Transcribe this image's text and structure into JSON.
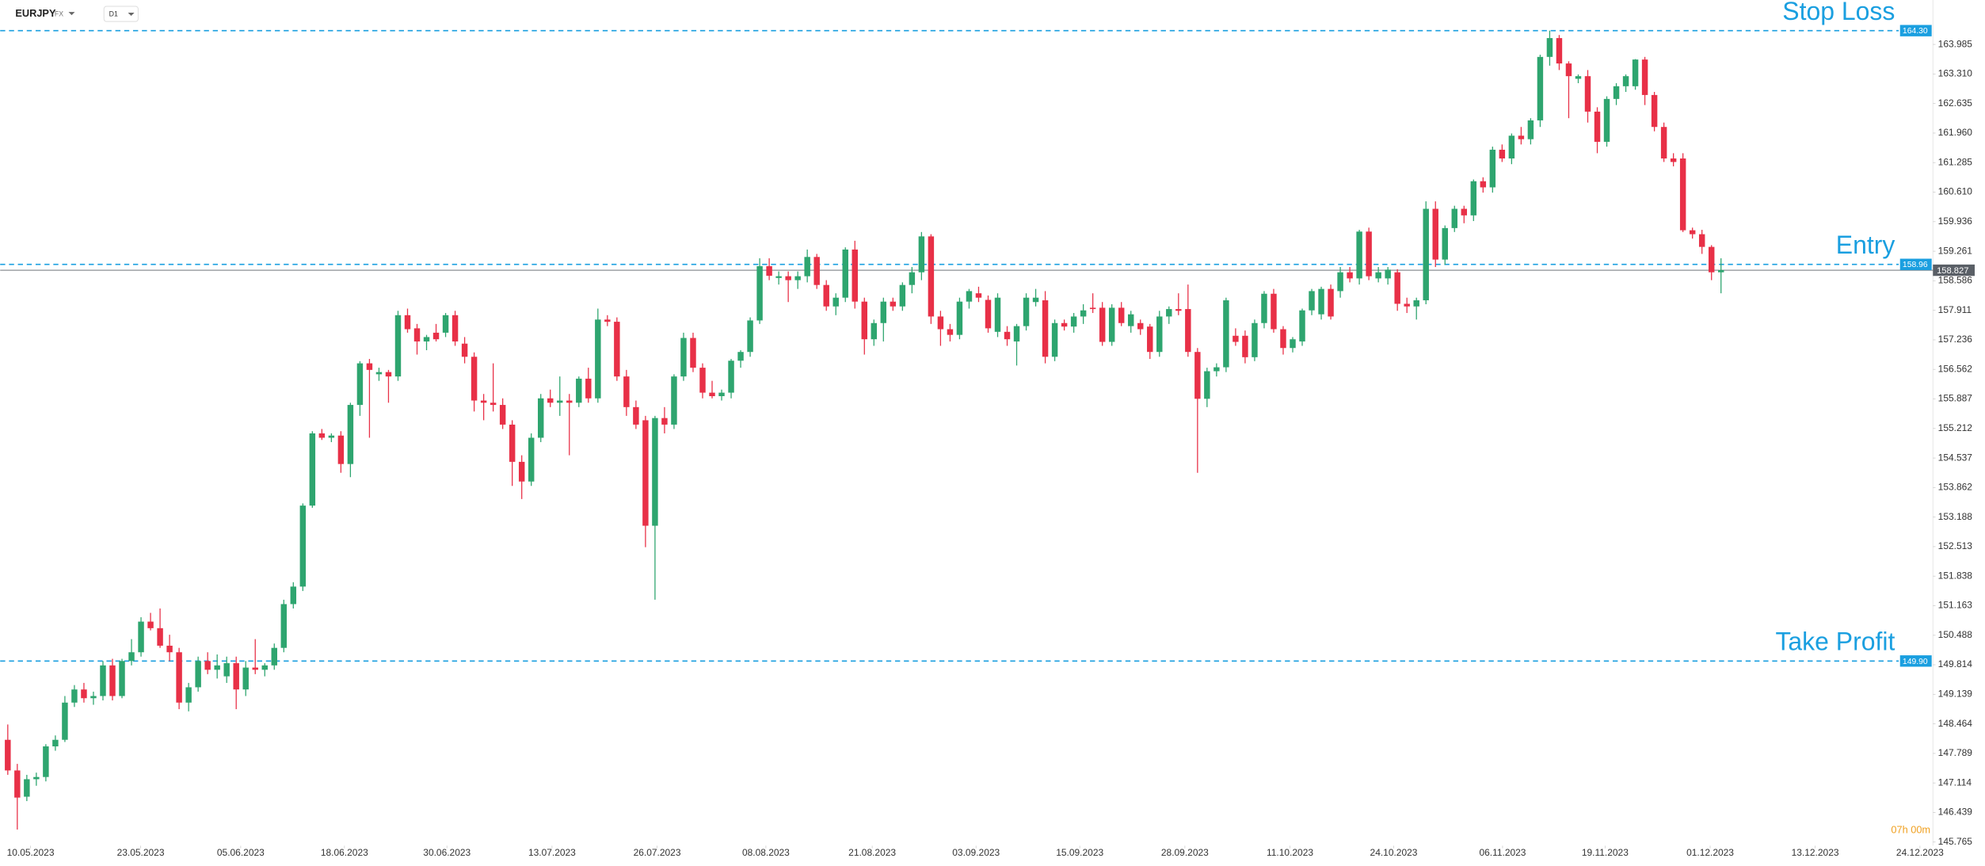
{
  "chart_data": {
    "type": "candlestick",
    "symbol": "EURJPY",
    "market": "FX",
    "interval": "D1",
    "countdown": "07h 00m",
    "up_color": "#2ea56f",
    "down_color": "#e83047",
    "level_color": "#1a9fe0",
    "price_color": "#5a5f66",
    "ylim": [
      145.68,
      165.0
    ],
    "yticks": [
      163.985,
      {
        "value": 163.31,
        "label": "163.310"
      },
      162.635,
      {
        "value": 161.96,
        "label": "161.960"
      },
      161.285,
      {
        "value": 160.61,
        "label": "160.610"
      },
      159.936,
      159.261,
      158.586,
      157.911,
      157.236,
      156.562,
      155.887,
      155.212,
      154.537,
      153.862,
      153.188,
      152.513,
      151.838,
      151.163,
      150.488,
      149.814,
      149.139,
      148.464,
      147.789,
      147.114,
      146.439,
      145.765
    ],
    "xlim": [
      -0.8,
      202.0
    ],
    "xticks": [
      {
        "value": 2.39,
        "label": "10.05.2023"
      },
      {
        "value": 13.96,
        "label": "23.05.2023"
      },
      {
        "value": 24.47,
        "label": "05.06.2023"
      },
      {
        "value": 35.37,
        "label": "18.06.2023"
      },
      {
        "value": 46.14,
        "label": "30.06.2023"
      },
      {
        "value": 57.18,
        "label": "13.07.2023"
      },
      {
        "value": 68.22,
        "label": "26.07.2023"
      },
      {
        "value": 79.65,
        "label": "08.08.2023"
      },
      {
        "value": 90.82,
        "label": "21.08.2023"
      },
      {
        "value": 101.73,
        "label": "03.09.2023"
      },
      {
        "value": 112.63,
        "label": "15.09.2023"
      },
      {
        "value": 123.67,
        "label": "28.09.2023"
      },
      {
        "value": 134.71,
        "label": "11.10.2023"
      },
      {
        "value": 145.61,
        "label": "24.10.2023"
      },
      {
        "value": 157.05,
        "label": "06.11.2023"
      },
      {
        "value": 167.82,
        "label": "19.11.2023"
      },
      {
        "value": 178.86,
        "label": "01.12.2023"
      },
      {
        "value": 189.89,
        "label": "13.12.2023"
      },
      {
        "value": 200.9,
        "label": "24.12.2023"
      }
    ],
    "levels": [
      {
        "name": "Stop Loss",
        "value": 164.3,
        "value_label": "164.30"
      },
      {
        "name": "Entry",
        "value": 158.96,
        "value_label": "158.96"
      },
      {
        "name": "Take Profit",
        "value": 149.9,
        "value_label": "149.90"
      }
    ],
    "current_price": 158.827,
    "candles": [
      [
        148.1,
        148.45,
        147.3,
        147.4
      ],
      [
        147.4,
        147.55,
        146.05,
        146.78
      ],
      [
        146.8,
        147.3,
        146.7,
        147.2
      ],
      [
        147.2,
        147.35,
        147.05,
        147.25
      ],
      [
        147.25,
        148.0,
        147.15,
        147.95
      ],
      [
        147.95,
        148.2,
        147.85,
        148.1
      ],
      [
        148.1,
        149.1,
        148.05,
        148.95
      ],
      [
        148.95,
        149.35,
        148.85,
        149.25
      ],
      [
        149.25,
        149.4,
        148.95,
        149.05
      ],
      [
        149.05,
        149.2,
        148.9,
        149.1
      ],
      [
        149.1,
        149.9,
        149.0,
        149.8
      ],
      [
        149.8,
        149.95,
        149.0,
        149.1
      ],
      [
        149.1,
        149.95,
        149.05,
        149.9
      ],
      [
        149.9,
        150.4,
        149.8,
        150.1
      ],
      [
        150.1,
        150.9,
        150.0,
        150.8
      ],
      [
        150.8,
        151.0,
        150.6,
        150.65
      ],
      [
        150.65,
        151.1,
        150.2,
        150.25
      ],
      [
        150.25,
        150.5,
        149.9,
        150.1
      ],
      [
        150.1,
        150.2,
        148.8,
        148.95
      ],
      [
        148.95,
        149.4,
        148.75,
        149.3
      ],
      [
        149.3,
        150.0,
        149.2,
        149.9
      ],
      [
        149.9,
        150.1,
        149.6,
        149.7
      ],
      [
        149.7,
        150.05,
        149.5,
        149.8
      ],
      [
        149.55,
        150.0,
        149.4,
        149.85
      ],
      [
        149.85,
        150.0,
        148.8,
        149.25
      ],
      [
        149.25,
        149.9,
        149.1,
        149.75
      ],
      [
        149.75,
        150.4,
        149.6,
        149.7
      ],
      [
        149.7,
        149.85,
        149.55,
        149.8
      ],
      [
        149.8,
        150.3,
        149.7,
        150.2
      ],
      [
        150.2,
        151.3,
        150.1,
        151.2
      ],
      [
        151.2,
        151.7,
        151.1,
        151.6
      ],
      [
        151.6,
        153.5,
        151.5,
        153.45
      ],
      [
        153.45,
        155.15,
        153.4,
        155.1
      ],
      [
        155.1,
        155.2,
        154.95,
        155.0
      ],
      [
        155.0,
        155.1,
        154.9,
        155.05
      ],
      [
        155.05,
        155.15,
        154.2,
        154.4
      ],
      [
        154.4,
        155.8,
        154.1,
        155.75
      ],
      [
        155.75,
        156.75,
        155.5,
        156.7
      ],
      [
        156.7,
        156.8,
        155.0,
        156.55
      ],
      [
        156.45,
        156.6,
        156.3,
        156.5
      ],
      [
        156.5,
        156.55,
        155.8,
        156.4
      ],
      [
        156.4,
        157.9,
        156.3,
        157.8
      ],
      [
        157.8,
        157.95,
        157.4,
        157.48
      ],
      [
        157.5,
        157.6,
        156.9,
        157.2
      ],
      [
        157.2,
        157.35,
        157.0,
        157.3
      ],
      [
        157.4,
        157.6,
        157.2,
        157.25
      ],
      [
        157.4,
        157.85,
        157.3,
        157.8
      ],
      [
        157.8,
        157.9,
        157.1,
        157.2
      ],
      [
        157.15,
        157.3,
        156.7,
        156.85
      ],
      [
        156.85,
        156.95,
        155.6,
        155.85
      ],
      [
        155.85,
        156.0,
        155.4,
        155.8
      ],
      [
        155.8,
        156.7,
        155.6,
        155.75
      ],
      [
        155.75,
        155.9,
        155.2,
        155.3
      ],
      [
        155.3,
        155.4,
        153.9,
        154.45
      ],
      [
        154.45,
        154.6,
        153.6,
        154.0
      ],
      [
        154.0,
        155.1,
        153.9,
        155.0
      ],
      [
        155.0,
        156.0,
        154.9,
        155.9
      ],
      [
        155.9,
        156.1,
        155.7,
        155.8
      ],
      [
        155.8,
        156.4,
        155.5,
        155.85
      ],
      [
        155.85,
        156.0,
        154.6,
        155.8
      ],
      [
        155.8,
        156.4,
        155.7,
        156.35
      ],
      [
        156.35,
        156.6,
        155.8,
        155.9
      ],
      [
        155.9,
        157.95,
        155.8,
        157.7
      ],
      [
        157.7,
        157.8,
        157.55,
        157.65
      ],
      [
        157.65,
        157.75,
        156.3,
        156.4
      ],
      [
        156.4,
        156.55,
        155.5,
        155.7
      ],
      [
        155.7,
        155.85,
        155.2,
        155.3
      ],
      [
        155.4,
        155.5,
        152.5,
        152.99
      ],
      [
        152.99,
        155.5,
        151.3,
        155.45
      ],
      [
        155.45,
        155.7,
        155.1,
        155.3
      ],
      [
        155.3,
        156.45,
        155.2,
        156.4
      ],
      [
        156.4,
        157.4,
        156.3,
        157.28
      ],
      [
        157.28,
        157.4,
        156.5,
        156.6
      ],
      [
        156.6,
        156.7,
        155.9,
        156.03
      ],
      [
        156.03,
        156.3,
        155.9,
        155.95
      ],
      [
        155.95,
        156.1,
        155.85,
        156.03
      ],
      [
        156.03,
        156.8,
        155.9,
        156.76
      ],
      [
        156.76,
        157.0,
        156.6,
        156.96
      ],
      [
        156.96,
        157.75,
        156.85,
        157.68
      ],
      [
        157.68,
        159.1,
        157.6,
        158.92
      ],
      [
        158.92,
        159.1,
        158.6,
        158.7
      ],
      [
        158.65,
        158.8,
        158.5,
        158.69
      ],
      [
        158.69,
        158.8,
        158.1,
        158.6
      ],
      [
        158.6,
        158.8,
        158.4,
        158.69
      ],
      [
        158.69,
        159.3,
        158.55,
        159.13
      ],
      [
        159.13,
        159.2,
        158.4,
        158.49
      ],
      [
        158.49,
        158.6,
        157.9,
        158.0
      ],
      [
        158.0,
        158.3,
        157.8,
        158.2
      ],
      [
        158.2,
        159.35,
        158.1,
        159.3
      ],
      [
        159.3,
        159.5,
        157.95,
        158.11
      ],
      [
        158.11,
        158.2,
        156.9,
        157.25
      ],
      [
        157.25,
        157.7,
        157.1,
        157.62
      ],
      [
        157.62,
        158.2,
        157.2,
        158.11
      ],
      [
        158.11,
        158.2,
        157.9,
        158.0
      ],
      [
        158.0,
        158.55,
        157.9,
        158.49
      ],
      [
        158.49,
        158.9,
        158.3,
        158.78
      ],
      [
        158.78,
        159.7,
        158.6,
        159.6
      ],
      [
        159.6,
        159.65,
        157.6,
        157.77
      ],
      [
        157.77,
        157.9,
        157.1,
        157.48
      ],
      [
        157.48,
        157.6,
        157.2,
        157.35
      ],
      [
        157.35,
        158.2,
        157.25,
        158.11
      ],
      [
        158.11,
        158.4,
        157.95,
        158.35
      ],
      [
        158.3,
        158.45,
        158.1,
        158.2
      ],
      [
        158.15,
        158.25,
        157.4,
        157.5
      ],
      [
        157.42,
        158.3,
        157.3,
        158.2
      ],
      [
        157.42,
        157.55,
        157.1,
        157.25
      ],
      [
        157.2,
        157.6,
        156.65,
        157.55
      ],
      [
        157.55,
        158.3,
        157.45,
        158.2
      ],
      [
        158.1,
        158.4,
        158.0,
        158.2
      ],
      [
        158.14,
        158.35,
        156.7,
        156.85
      ],
      [
        156.85,
        157.7,
        156.75,
        157.62
      ],
      [
        157.62,
        157.7,
        157.45,
        157.54
      ],
      [
        157.54,
        157.85,
        157.4,
        157.77
      ],
      [
        157.77,
        158.05,
        157.6,
        157.91
      ],
      [
        157.97,
        158.3,
        157.85,
        157.94
      ],
      [
        157.97,
        158.1,
        157.1,
        157.19
      ],
      [
        157.19,
        158.05,
        157.1,
        157.97
      ],
      [
        157.97,
        158.1,
        157.55,
        157.62
      ],
      [
        157.55,
        157.9,
        157.4,
        157.82
      ],
      [
        157.62,
        157.7,
        157.35,
        157.48
      ],
      [
        157.54,
        157.6,
        156.8,
        156.96
      ],
      [
        156.96,
        157.9,
        156.85,
        157.77
      ],
      [
        157.77,
        158.0,
        157.6,
        157.94
      ],
      [
        157.94,
        158.3,
        157.8,
        157.9
      ],
      [
        157.94,
        158.5,
        156.85,
        156.96
      ],
      [
        156.96,
        157.05,
        154.2,
        155.89
      ],
      [
        155.89,
        156.6,
        155.7,
        156.52
      ],
      [
        156.52,
        156.7,
        156.4,
        156.61
      ],
      [
        156.61,
        158.2,
        156.5,
        158.14
      ],
      [
        157.33,
        157.5,
        157.1,
        157.19
      ],
      [
        157.33,
        157.45,
        156.7,
        156.84
      ],
      [
        156.84,
        157.7,
        156.75,
        157.62
      ],
      [
        157.62,
        158.35,
        157.5,
        158.29
      ],
      [
        158.29,
        158.4,
        157.4,
        157.48
      ],
      [
        157.48,
        157.55,
        156.9,
        157.05
      ],
      [
        157.05,
        157.3,
        156.95,
        157.25
      ],
      [
        157.2,
        157.95,
        157.1,
        157.91
      ],
      [
        157.91,
        158.4,
        157.8,
        158.35
      ],
      [
        157.82,
        158.45,
        157.7,
        158.4
      ],
      [
        158.4,
        158.5,
        157.7,
        157.77
      ],
      [
        158.35,
        158.9,
        158.2,
        158.78
      ],
      [
        158.78,
        158.9,
        158.55,
        158.64
      ],
      [
        158.64,
        159.75,
        158.5,
        159.71
      ],
      [
        159.71,
        159.8,
        158.6,
        158.69
      ],
      [
        158.64,
        158.9,
        158.55,
        158.78
      ],
      [
        158.64,
        158.9,
        158.5,
        158.84
      ],
      [
        158.78,
        158.85,
        157.9,
        158.06
      ],
      [
        158.06,
        158.2,
        157.85,
        158.0
      ],
      [
        158.0,
        158.2,
        157.7,
        158.14
      ],
      [
        158.14,
        160.4,
        158.05,
        160.23
      ],
      [
        160.23,
        160.4,
        158.9,
        159.07
      ],
      [
        159.07,
        159.85,
        158.95,
        159.79
      ],
      [
        159.79,
        160.3,
        159.7,
        160.23
      ],
      [
        160.23,
        160.3,
        159.9,
        160.08
      ],
      [
        160.08,
        160.9,
        159.95,
        160.86
      ],
      [
        160.86,
        160.95,
        160.6,
        160.72
      ],
      [
        160.72,
        161.65,
        160.6,
        161.58
      ],
      [
        161.58,
        161.7,
        161.3,
        161.38
      ],
      [
        161.38,
        161.95,
        161.25,
        161.9
      ],
      [
        161.9,
        162.1,
        161.7,
        161.82
      ],
      [
        161.82,
        162.3,
        161.7,
        162.25
      ],
      [
        162.25,
        163.75,
        162.1,
        163.7
      ],
      [
        163.7,
        164.3,
        163.5,
        164.13
      ],
      [
        164.13,
        164.2,
        163.4,
        163.55
      ],
      [
        163.55,
        163.6,
        162.3,
        163.26
      ],
      [
        163.2,
        163.3,
        163.1,
        163.26
      ],
      [
        163.26,
        163.4,
        162.2,
        162.45
      ],
      [
        162.45,
        162.55,
        161.5,
        161.76
      ],
      [
        161.76,
        162.8,
        161.65,
        162.74
      ],
      [
        162.74,
        163.1,
        162.6,
        163.03
      ],
      [
        163.03,
        163.3,
        162.9,
        163.26
      ],
      [
        163.03,
        163.65,
        162.95,
        163.64
      ],
      [
        163.64,
        163.7,
        162.6,
        162.83
      ],
      [
        162.83,
        162.9,
        162.0,
        162.1
      ],
      [
        162.1,
        162.2,
        161.3,
        161.38
      ],
      [
        161.38,
        161.5,
        161.2,
        161.3
      ],
      [
        161.38,
        161.5,
        159.7,
        159.74
      ],
      [
        159.74,
        159.8,
        159.55,
        159.65
      ],
      [
        159.65,
        159.75,
        159.2,
        159.36
      ],
      [
        159.36,
        159.4,
        158.6,
        158.78
      ],
      [
        158.78,
        159.1,
        158.3,
        158.83
      ]
    ]
  }
}
